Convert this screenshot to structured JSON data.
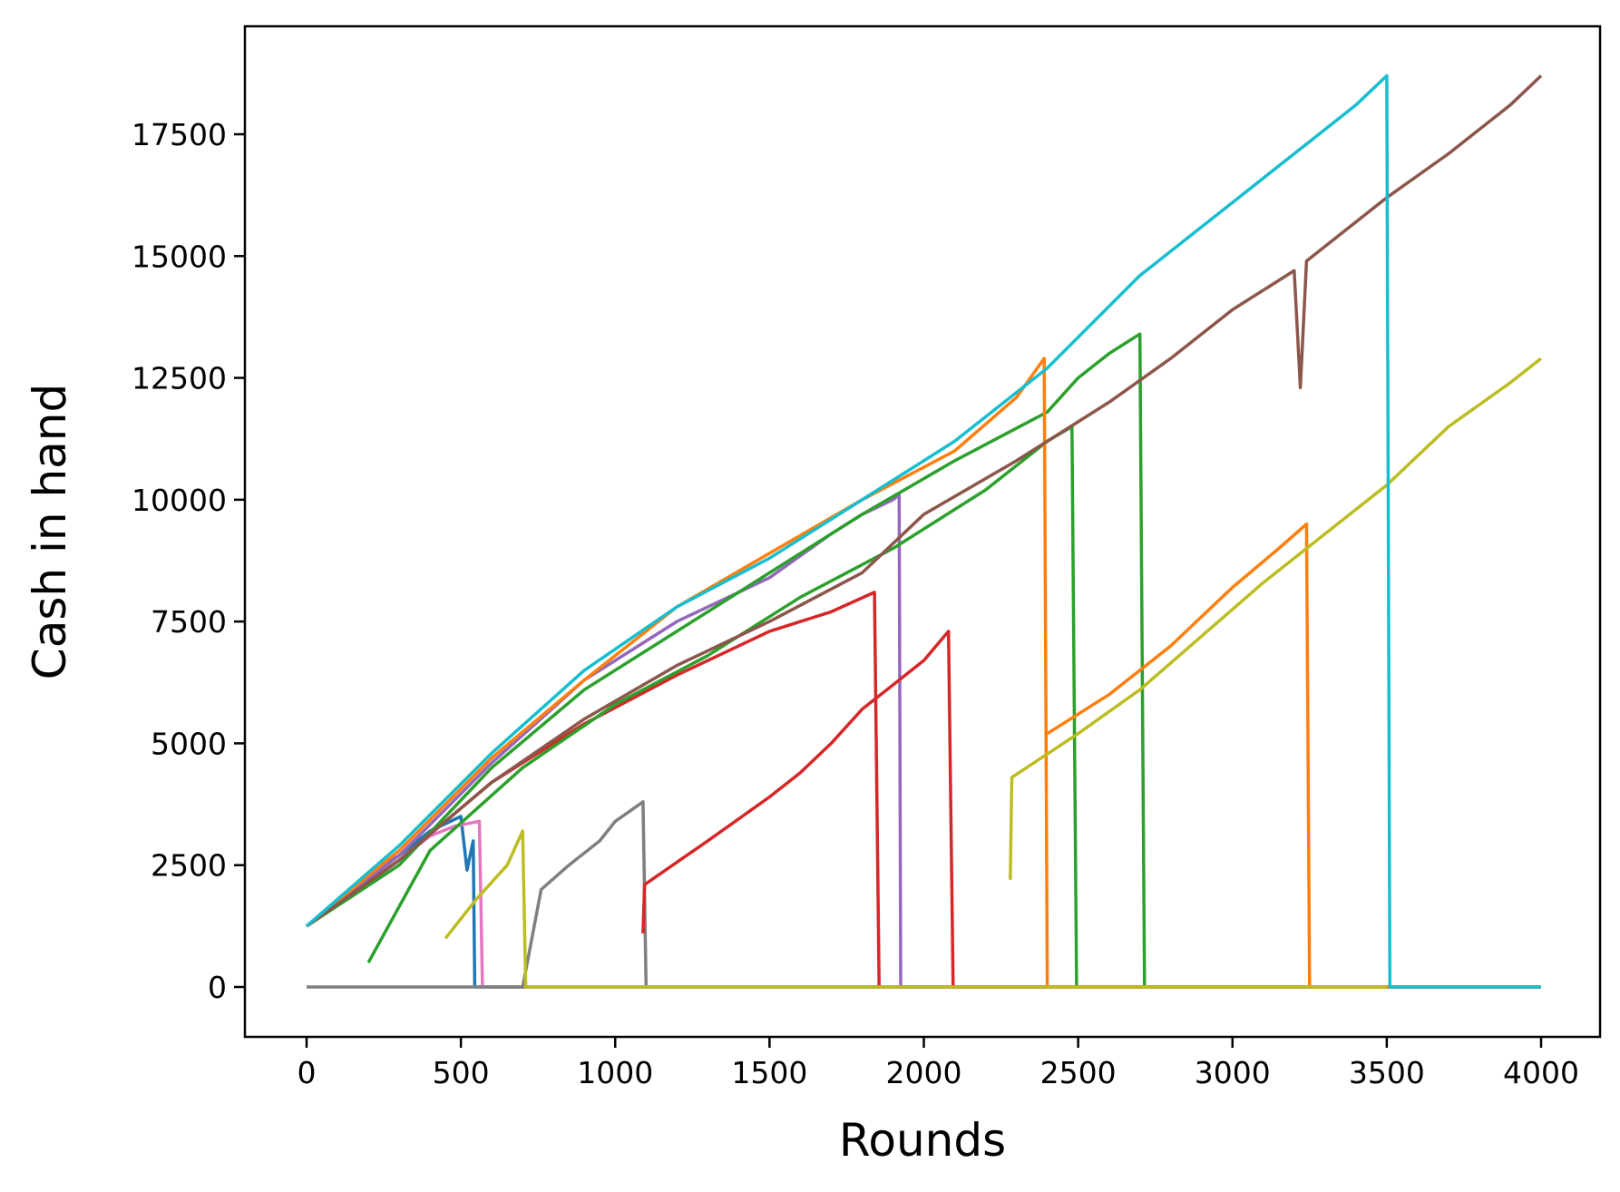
{
  "chart_data": {
    "type": "line",
    "title": "",
    "xlabel": "Rounds",
    "ylabel": "Cash in hand",
    "xlim": [
      -200,
      4190
    ],
    "ylim": [
      -930,
      19700
    ],
    "xticks": [
      0,
      500,
      1000,
      1500,
      2000,
      2500,
      3000,
      3500,
      4000
    ],
    "yticks": [
      0,
      2500,
      5000,
      7500,
      10000,
      12500,
      15000,
      17500
    ],
    "grid": false,
    "legend": "none",
    "series": [
      {
        "color": "#1f77b4",
        "points": [
          [
            0,
            1250
          ],
          [
            100,
            1700
          ],
          [
            200,
            2300
          ],
          [
            300,
            2700
          ],
          [
            400,
            3200
          ],
          [
            500,
            3500
          ],
          [
            520,
            2400
          ],
          [
            540,
            3000
          ],
          [
            545,
            0
          ],
          [
            4000,
            0
          ]
        ]
      },
      {
        "color": "#e377c2",
        "points": [
          [
            0,
            1250
          ],
          [
            150,
            1900
          ],
          [
            300,
            2600
          ],
          [
            400,
            3100
          ],
          [
            480,
            3300
          ],
          [
            560,
            3400
          ],
          [
            570,
            0
          ],
          [
            4000,
            0
          ]
        ]
      },
      {
        "color": "#7f7f7f",
        "points": [
          [
            0,
            0
          ],
          [
            700,
            0
          ],
          [
            760,
            2000
          ],
          [
            850,
            2500
          ],
          [
            950,
            3000
          ],
          [
            1000,
            3400
          ],
          [
            1090,
            3800
          ],
          [
            1100,
            0
          ],
          [
            4000,
            0
          ]
        ]
      },
      {
        "color": "#9467bd",
        "points": [
          [
            0,
            1250
          ],
          [
            300,
            2700
          ],
          [
            600,
            4600
          ],
          [
            900,
            6300
          ],
          [
            1200,
            7500
          ],
          [
            1500,
            8400
          ],
          [
            1700,
            9300
          ],
          [
            1800,
            9700
          ],
          [
            1900,
            10000
          ],
          [
            1920,
            10100
          ],
          [
            1925,
            0
          ],
          [
            4000,
            0
          ]
        ]
      },
      {
        "color": "#d62728",
        "points": [
          [
            1090,
            1100
          ],
          [
            1095,
            2100
          ],
          [
            1300,
            3000
          ],
          [
            1500,
            3900
          ],
          [
            1600,
            4400
          ],
          [
            1700,
            5000
          ],
          [
            1800,
            5700
          ],
          [
            1900,
            6200
          ],
          [
            2000,
            6700
          ],
          [
            2080,
            7300
          ],
          [
            2095,
            0
          ],
          [
            4000,
            0
          ]
        ]
      },
      {
        "color": "#d62728",
        "points": [
          [
            0,
            1250
          ],
          [
            300,
            2600
          ],
          [
            600,
            4200
          ],
          [
            900,
            5400
          ],
          [
            1200,
            6400
          ],
          [
            1500,
            7300
          ],
          [
            1700,
            7700
          ],
          [
            1840,
            8100
          ],
          [
            1855,
            0
          ]
        ]
      },
      {
        "color": "#2ca02c",
        "points": [
          [
            0,
            1250
          ],
          [
            300,
            2500
          ],
          [
            600,
            4500
          ],
          [
            900,
            6100
          ],
          [
            1200,
            7300
          ],
          [
            1500,
            8500
          ],
          [
            1800,
            9700
          ],
          [
            2100,
            10800
          ],
          [
            2400,
            11800
          ],
          [
            2500,
            12500
          ],
          [
            2600,
            13000
          ],
          [
            2700,
            13400
          ],
          [
            2715,
            0
          ],
          [
            4000,
            0
          ]
        ]
      },
      {
        "color": "#2ca02c",
        "points": [
          [
            200,
            500
          ],
          [
            400,
            2800
          ],
          [
            700,
            4500
          ],
          [
            1000,
            5800
          ],
          [
            1300,
            6800
          ],
          [
            1600,
            8000
          ],
          [
            1900,
            9000
          ],
          [
            2200,
            10200
          ],
          [
            2400,
            11200
          ],
          [
            2480,
            11500
          ],
          [
            2495,
            0
          ]
        ]
      },
      {
        "color": "#ff7f0e",
        "points": [
          [
            0,
            1250
          ],
          [
            300,
            2800
          ],
          [
            600,
            4700
          ],
          [
            900,
            6300
          ],
          [
            1200,
            7800
          ],
          [
            1500,
            8900
          ],
          [
            1800,
            10000
          ],
          [
            2100,
            11000
          ],
          [
            2300,
            12100
          ],
          [
            2390,
            12900
          ],
          [
            2400,
            0
          ],
          [
            4000,
            0
          ]
        ]
      },
      {
        "color": "#ff7f0e",
        "points": [
          [
            2400,
            5200
          ],
          [
            2600,
            6000
          ],
          [
            2800,
            7000
          ],
          [
            3000,
            8200
          ],
          [
            3150,
            9000
          ],
          [
            3240,
            9500
          ],
          [
            3250,
            0
          ],
          [
            4000,
            0
          ]
        ]
      },
      {
        "color": "#bcbd22",
        "points": [
          [
            450,
            1000
          ],
          [
            550,
            1800
          ],
          [
            650,
            2500
          ],
          [
            700,
            3200
          ],
          [
            710,
            0
          ],
          [
            3500,
            0
          ]
        ]
      },
      {
        "color": "#bcbd22",
        "points": [
          [
            2280,
            2200
          ],
          [
            2285,
            4300
          ],
          [
            2500,
            5200
          ],
          [
            2700,
            6100
          ],
          [
            2900,
            7200
          ],
          [
            3100,
            8300
          ],
          [
            3300,
            9300
          ],
          [
            3500,
            10300
          ],
          [
            3700,
            11500
          ],
          [
            3900,
            12400
          ],
          [
            4000,
            12900
          ]
        ]
      },
      {
        "color": "#8c564b",
        "points": [
          [
            0,
            1250
          ],
          [
            300,
            2600
          ],
          [
            600,
            4200
          ],
          [
            900,
            5500
          ],
          [
            1200,
            6600
          ],
          [
            1500,
            7500
          ],
          [
            1800,
            8500
          ],
          [
            2000,
            9700
          ],
          [
            2300,
            10800
          ],
          [
            2600,
            12000
          ],
          [
            2800,
            12900
          ],
          [
            3000,
            13900
          ],
          [
            3200,
            14700
          ],
          [
            3220,
            12300
          ],
          [
            3240,
            14900
          ],
          [
            3500,
            16200
          ],
          [
            3700,
            17100
          ],
          [
            3900,
            18100
          ],
          [
            4000,
            18700
          ]
        ]
      },
      {
        "color": "#17becf",
        "points": [
          [
            0,
            1250
          ],
          [
            300,
            2900
          ],
          [
            600,
            4800
          ],
          [
            900,
            6500
          ],
          [
            1200,
            7800
          ],
          [
            1500,
            8800
          ],
          [
            1800,
            10000
          ],
          [
            2100,
            11200
          ],
          [
            2400,
            12700
          ],
          [
            2700,
            14600
          ],
          [
            3000,
            16100
          ],
          [
            3200,
            17100
          ],
          [
            3400,
            18100
          ],
          [
            3500,
            18700
          ],
          [
            3510,
            0
          ],
          [
            4000,
            0
          ]
        ]
      }
    ]
  }
}
